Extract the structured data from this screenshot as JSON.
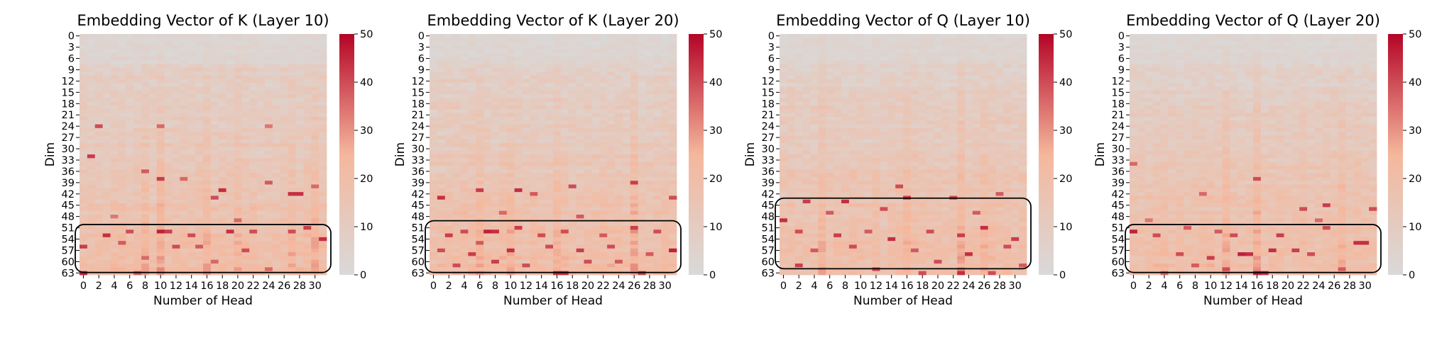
{
  "chart_data": [
    {
      "type": "heatmap",
      "title": "Embedding Vector of K (Layer 10)",
      "xlabel": "Number of Head",
      "ylabel": "Dim",
      "x_range": [
        0,
        31
      ],
      "y_range": [
        0,
        63
      ],
      "x_tick_labels": [
        "0",
        "2",
        "4",
        "6",
        "8",
        "10",
        "12",
        "14",
        "16",
        "18",
        "20",
        "22",
        "24",
        "26",
        "28",
        "30"
      ],
      "y_tick_labels": [
        "0",
        "3",
        "6",
        "9",
        "12",
        "15",
        "18",
        "21",
        "24",
        "27",
        "30",
        "33",
        "36",
        "39",
        "42",
        "45",
        "48",
        "51",
        "54",
        "57",
        "60",
        "63"
      ],
      "color_range": [
        0,
        50
      ],
      "colorbar_ticks": [
        "0",
        "10",
        "20",
        "30",
        "40",
        "50"
      ],
      "colormap": [
        "#d9d9d9",
        "#f5b79c",
        "#b40426"
      ],
      "highlight_rows": [
        51,
        62
      ],
      "hotspots": [
        {
          "x": 2,
          "y": 24,
          "v": 40
        },
        {
          "x": 10,
          "y": 24,
          "v": 36
        },
        {
          "x": 24,
          "y": 24,
          "v": 34
        },
        {
          "x": 1,
          "y": 32,
          "v": 42
        },
        {
          "x": 8,
          "y": 36,
          "v": 38
        },
        {
          "x": 10,
          "y": 38,
          "v": 42
        },
        {
          "x": 13,
          "y": 38,
          "v": 36
        },
        {
          "x": 18,
          "y": 41,
          "v": 44
        },
        {
          "x": 17,
          "y": 43,
          "v": 40
        },
        {
          "x": 27,
          "y": 42,
          "v": 44
        },
        {
          "x": 28,
          "y": 42,
          "v": 44
        },
        {
          "x": 24,
          "y": 39,
          "v": 38
        },
        {
          "x": 30,
          "y": 40,
          "v": 36
        },
        {
          "x": 3,
          "y": 53,
          "v": 44
        },
        {
          "x": 6,
          "y": 52,
          "v": 40
        },
        {
          "x": 10,
          "y": 52,
          "v": 46
        },
        {
          "x": 11,
          "y": 52,
          "v": 42
        },
        {
          "x": 14,
          "y": 53,
          "v": 40
        },
        {
          "x": 19,
          "y": 52,
          "v": 44
        },
        {
          "x": 22,
          "y": 52,
          "v": 40
        },
        {
          "x": 27,
          "y": 52,
          "v": 40
        },
        {
          "x": 29,
          "y": 51,
          "v": 42
        },
        {
          "x": 0,
          "y": 56,
          "v": 42
        },
        {
          "x": 5,
          "y": 55,
          "v": 38
        },
        {
          "x": 12,
          "y": 56,
          "v": 40
        },
        {
          "x": 15,
          "y": 56,
          "v": 38
        },
        {
          "x": 21,
          "y": 57,
          "v": 40
        },
        {
          "x": 31,
          "y": 54,
          "v": 44
        },
        {
          "x": 8,
          "y": 59,
          "v": 36
        },
        {
          "x": 24,
          "y": 62,
          "v": 36
        },
        {
          "x": 0,
          "y": 63,
          "v": 46
        },
        {
          "x": 7,
          "y": 63,
          "v": 38
        },
        {
          "x": 17,
          "y": 60,
          "v": 36
        },
        {
          "x": 4,
          "y": 48,
          "v": 34
        },
        {
          "x": 20,
          "y": 49,
          "v": 36
        }
      ],
      "hot_columns": [
        8,
        10,
        16,
        20,
        27,
        30
      ],
      "seed": 11
    },
    {
      "type": "heatmap",
      "title": "Embedding Vector of K (Layer 20)",
      "xlabel": "Number of Head",
      "ylabel": "Dim",
      "x_range": [
        0,
        31
      ],
      "y_range": [
        0,
        63
      ],
      "x_tick_labels": [
        "0",
        "2",
        "4",
        "6",
        "8",
        "10",
        "12",
        "14",
        "16",
        "18",
        "20",
        "22",
        "24",
        "26",
        "28",
        "30"
      ],
      "y_tick_labels": [
        "0",
        "3",
        "6",
        "9",
        "12",
        "15",
        "18",
        "21",
        "24",
        "27",
        "30",
        "33",
        "36",
        "39",
        "42",
        "45",
        "48",
        "51",
        "54",
        "57",
        "60",
        "63"
      ],
      "color_range": [
        0,
        50
      ],
      "colorbar_ticks": [
        "0",
        "10",
        "20",
        "30",
        "40",
        "50"
      ],
      "colormap": [
        "#d9d9d9",
        "#f5b79c",
        "#b40426"
      ],
      "highlight_rows": [
        50,
        62
      ],
      "hotspots": [
        {
          "x": 1,
          "y": 43,
          "v": 44
        },
        {
          "x": 6,
          "y": 41,
          "v": 42
        },
        {
          "x": 11,
          "y": 41,
          "v": 44
        },
        {
          "x": 13,
          "y": 42,
          "v": 38
        },
        {
          "x": 18,
          "y": 40,
          "v": 40
        },
        {
          "x": 26,
          "y": 39,
          "v": 42
        },
        {
          "x": 31,
          "y": 43,
          "v": 40
        },
        {
          "x": 9,
          "y": 47,
          "v": 36
        },
        {
          "x": 19,
          "y": 48,
          "v": 38
        },
        {
          "x": 2,
          "y": 53,
          "v": 42
        },
        {
          "x": 4,
          "y": 52,
          "v": 40
        },
        {
          "x": 7,
          "y": 52,
          "v": 46
        },
        {
          "x": 8,
          "y": 52,
          "v": 44
        },
        {
          "x": 11,
          "y": 51,
          "v": 42
        },
        {
          "x": 14,
          "y": 53,
          "v": 40
        },
        {
          "x": 17,
          "y": 52,
          "v": 40
        },
        {
          "x": 22,
          "y": 53,
          "v": 38
        },
        {
          "x": 26,
          "y": 51,
          "v": 42
        },
        {
          "x": 29,
          "y": 52,
          "v": 40
        },
        {
          "x": 1,
          "y": 57,
          "v": 40
        },
        {
          "x": 5,
          "y": 58,
          "v": 42
        },
        {
          "x": 10,
          "y": 57,
          "v": 44
        },
        {
          "x": 15,
          "y": 56,
          "v": 40
        },
        {
          "x": 19,
          "y": 57,
          "v": 42
        },
        {
          "x": 23,
          "y": 56,
          "v": 40
        },
        {
          "x": 28,
          "y": 58,
          "v": 38
        },
        {
          "x": 31,
          "y": 57,
          "v": 46
        },
        {
          "x": 3,
          "y": 61,
          "v": 40
        },
        {
          "x": 8,
          "y": 60,
          "v": 42
        },
        {
          "x": 12,
          "y": 61,
          "v": 40
        },
        {
          "x": 16,
          "y": 63,
          "v": 44
        },
        {
          "x": 17,
          "y": 63,
          "v": 44
        },
        {
          "x": 24,
          "y": 60,
          "v": 38
        },
        {
          "x": 27,
          "y": 63,
          "v": 42
        },
        {
          "x": 6,
          "y": 55,
          "v": 38
        },
        {
          "x": 20,
          "y": 60,
          "v": 40
        }
      ],
      "hot_columns": [
        6,
        10,
        16,
        26
      ],
      "seed": 23
    },
    {
      "type": "heatmap",
      "title": "Embedding Vector of Q (Layer 10)",
      "xlabel": "Number of Head",
      "ylabel": "Dim",
      "x_range": [
        0,
        31
      ],
      "y_range": [
        0,
        63
      ],
      "x_tick_labels": [
        "0",
        "2",
        "4",
        "6",
        "8",
        "10",
        "12",
        "14",
        "16",
        "18",
        "20",
        "22",
        "24",
        "26",
        "28",
        "30"
      ],
      "y_tick_labels": [
        "0",
        "3",
        "6",
        "9",
        "12",
        "15",
        "18",
        "21",
        "24",
        "27",
        "30",
        "33",
        "36",
        "39",
        "42",
        "45",
        "48",
        "51",
        "54",
        "57",
        "60",
        "63"
      ],
      "color_range": [
        0,
        50
      ],
      "colorbar_ticks": [
        "0",
        "10",
        "20",
        "30",
        "40",
        "50"
      ],
      "colormap": [
        "#d9d9d9",
        "#f5b79c",
        "#b40426"
      ],
      "highlight_rows": [
        44,
        61
      ],
      "hotspots": [
        {
          "x": 3,
          "y": 44,
          "v": 42
        },
        {
          "x": 8,
          "y": 44,
          "v": 44
        },
        {
          "x": 16,
          "y": 43,
          "v": 42
        },
        {
          "x": 22,
          "y": 43,
          "v": 40
        },
        {
          "x": 15,
          "y": 40,
          "v": 40
        },
        {
          "x": 28,
          "y": 42,
          "v": 38
        },
        {
          "x": 0,
          "y": 49,
          "v": 44
        },
        {
          "x": 6,
          "y": 47,
          "v": 38
        },
        {
          "x": 13,
          "y": 46,
          "v": 40
        },
        {
          "x": 25,
          "y": 47,
          "v": 38
        },
        {
          "x": 2,
          "y": 52,
          "v": 40
        },
        {
          "x": 7,
          "y": 53,
          "v": 42
        },
        {
          "x": 11,
          "y": 52,
          "v": 38
        },
        {
          "x": 14,
          "y": 54,
          "v": 44
        },
        {
          "x": 19,
          "y": 52,
          "v": 40
        },
        {
          "x": 23,
          "y": 53,
          "v": 42
        },
        {
          "x": 26,
          "y": 51,
          "v": 44
        },
        {
          "x": 30,
          "y": 54,
          "v": 42
        },
        {
          "x": 4,
          "y": 57,
          "v": 38
        },
        {
          "x": 9,
          "y": 56,
          "v": 40
        },
        {
          "x": 17,
          "y": 57,
          "v": 38
        },
        {
          "x": 24,
          "y": 58,
          "v": 44
        },
        {
          "x": 29,
          "y": 56,
          "v": 40
        },
        {
          "x": 2,
          "y": 61,
          "v": 42
        },
        {
          "x": 12,
          "y": 62,
          "v": 40
        },
        {
          "x": 20,
          "y": 60,
          "v": 40
        },
        {
          "x": 23,
          "y": 63,
          "v": 44
        },
        {
          "x": 27,
          "y": 63,
          "v": 40
        },
        {
          "x": 31,
          "y": 61,
          "v": 38
        },
        {
          "x": 18,
          "y": 63,
          "v": 40
        }
      ],
      "hot_columns": [
        5,
        16,
        23,
        26
      ],
      "seed": 37
    },
    {
      "type": "heatmap",
      "title": "Embedding Vector of Q (Layer 20)",
      "xlabel": "Number of Head",
      "ylabel": "Dim",
      "x_range": [
        0,
        31
      ],
      "y_range": [
        0,
        63
      ],
      "x_tick_labels": [
        "0",
        "2",
        "4",
        "6",
        "8",
        "10",
        "12",
        "14",
        "16",
        "18",
        "20",
        "22",
        "24",
        "26",
        "28",
        "30"
      ],
      "y_tick_labels": [
        "0",
        "3",
        "6",
        "9",
        "12",
        "15",
        "18",
        "21",
        "24",
        "27",
        "30",
        "33",
        "36",
        "39",
        "42",
        "45",
        "48",
        "51",
        "54",
        "57",
        "60",
        "63"
      ],
      "color_range": [
        0,
        50
      ],
      "colorbar_ticks": [
        "0",
        "10",
        "20",
        "30",
        "40",
        "50"
      ],
      "colormap": [
        "#d9d9d9",
        "#f5b79c",
        "#b40426"
      ],
      "highlight_rows": [
        51,
        62
      ],
      "hotspots": [
        {
          "x": 0,
          "y": 34,
          "v": 36
        },
        {
          "x": 16,
          "y": 38,
          "v": 40
        },
        {
          "x": 9,
          "y": 42,
          "v": 36
        },
        {
          "x": 22,
          "y": 46,
          "v": 40
        },
        {
          "x": 25,
          "y": 45,
          "v": 42
        },
        {
          "x": 31,
          "y": 46,
          "v": 40
        },
        {
          "x": 0,
          "y": 52,
          "v": 46
        },
        {
          "x": 3,
          "y": 53,
          "v": 40
        },
        {
          "x": 7,
          "y": 51,
          "v": 38
        },
        {
          "x": 11,
          "y": 52,
          "v": 38
        },
        {
          "x": 13,
          "y": 53,
          "v": 40
        },
        {
          "x": 19,
          "y": 53,
          "v": 42
        },
        {
          "x": 25,
          "y": 51,
          "v": 40
        },
        {
          "x": 29,
          "y": 55,
          "v": 44
        },
        {
          "x": 30,
          "y": 55,
          "v": 44
        },
        {
          "x": 6,
          "y": 58,
          "v": 40
        },
        {
          "x": 10,
          "y": 59,
          "v": 42
        },
        {
          "x": 14,
          "y": 58,
          "v": 46
        },
        {
          "x": 15,
          "y": 58,
          "v": 44
        },
        {
          "x": 18,
          "y": 57,
          "v": 44
        },
        {
          "x": 21,
          "y": 57,
          "v": 42
        },
        {
          "x": 23,
          "y": 58,
          "v": 40
        },
        {
          "x": 8,
          "y": 61,
          "v": 38
        },
        {
          "x": 12,
          "y": 62,
          "v": 40
        },
        {
          "x": 16,
          "y": 63,
          "v": 46
        },
        {
          "x": 17,
          "y": 63,
          "v": 44
        },
        {
          "x": 4,
          "y": 63,
          "v": 36
        },
        {
          "x": 27,
          "y": 62,
          "v": 38
        },
        {
          "x": 2,
          "y": 49,
          "v": 34
        },
        {
          "x": 24,
          "y": 49,
          "v": 36
        }
      ],
      "hot_columns": [
        12,
        16,
        27
      ],
      "seed": 53
    }
  ]
}
